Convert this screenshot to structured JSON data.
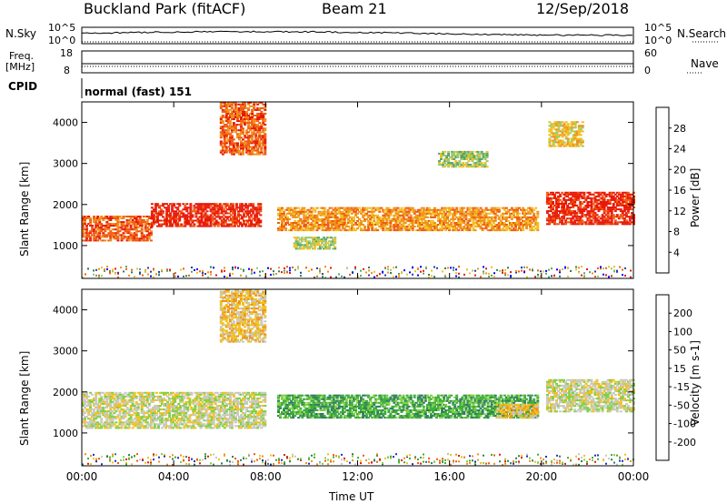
{
  "header": {
    "station": "Buckland Park (fitACF)",
    "beam": "Beam 21",
    "date": "12/Sep/2018"
  },
  "status_panels": {
    "nsky_label": "N.Sky",
    "nsky_ticks": [
      "10^5",
      "10^0"
    ],
    "nsearch_label": "N.Search",
    "nsearch_ticks": [
      "10^5",
      "10^0"
    ],
    "freq_label": "Freq.",
    "freq_unit": "[MHz]",
    "freq_ticks": [
      "18",
      "8"
    ],
    "nave_label": "Nave",
    "nave_ticks": [
      "60",
      "0"
    ],
    "cpid_label": "CPID",
    "cpid_value": "normal (fast) 151"
  },
  "chart_data": [
    {
      "type": "heatmap",
      "name": "power",
      "ylabel": "Slant Range [km]",
      "yticks": [
        "4000",
        "3000",
        "2000",
        "1000"
      ],
      "ylim": [
        200,
        4500
      ],
      "xlim": [
        0,
        24
      ],
      "colorbar_label": "Power [dB]",
      "colorbar_ticks": [
        "28",
        "24",
        "20",
        "16",
        "12",
        "8",
        "4"
      ],
      "colors": [
        "#0000ff",
        "#2040a0",
        "#2e7d5a",
        "#56a46a",
        "#9cc86a",
        "#f0c020",
        "#f09018",
        "#f05a10",
        "#e81808"
      ],
      "echo_regions": [
        {
          "t0": 0.0,
          "t1": 3.0,
          "r0": 1100,
          "r1": 1700,
          "level": 7
        },
        {
          "t0": 3.0,
          "t1": 7.8,
          "r0": 1450,
          "r1": 2000,
          "level": 8
        },
        {
          "t0": 6.0,
          "t1": 8.0,
          "r0": 3200,
          "r1": 4500,
          "level": 7
        },
        {
          "t0": 8.5,
          "t1": 19.8,
          "r0": 1350,
          "r1": 1900,
          "level": 6
        },
        {
          "t0": 9.2,
          "t1": 11.0,
          "r0": 900,
          "r1": 1200,
          "level": 4
        },
        {
          "t0": 15.5,
          "t1": 17.6,
          "r0": 2900,
          "r1": 3300,
          "level": 4
        },
        {
          "t0": 20.2,
          "t1": 24.0,
          "r0": 1500,
          "r1": 2300,
          "level": 8
        },
        {
          "t0": 20.3,
          "t1": 21.8,
          "r0": 3400,
          "r1": 4000,
          "level": 5
        }
      ]
    },
    {
      "type": "heatmap",
      "name": "velocity",
      "xlabel": "Time UT",
      "ylabel": "Slant Range [km]",
      "xticks": [
        "00:00",
        "04:00",
        "08:00",
        "12:00",
        "16:00",
        "20:00",
        "00:00"
      ],
      "yticks": [
        "4000",
        "3000",
        "2000",
        "1000"
      ],
      "ylim": [
        200,
        4500
      ],
      "xlim": [
        0,
        24
      ],
      "colorbar_label": "Velocity [m s-1]",
      "colorbar_ticks": [
        "200",
        "100",
        "50",
        "15",
        "-15",
        "-50",
        "-100",
        "-200"
      ],
      "colors": [
        "#2030c0",
        "#2e7d5a",
        "#3caa3c",
        "#7cd040",
        "#c8c8c0",
        "#f0c020",
        "#f09018",
        "#f05a10",
        "#e81808"
      ],
      "echo_regions": [
        {
          "t0": 0.0,
          "t1": 8.0,
          "r0": 1100,
          "r1": 2000,
          "level": 4
        },
        {
          "t0": 6.0,
          "t1": 8.0,
          "r0": 3200,
          "r1": 4500,
          "level": 5
        },
        {
          "t0": 8.5,
          "t1": 19.8,
          "r0": 1350,
          "r1": 1900,
          "level": 2
        },
        {
          "t0": 18.0,
          "t1": 19.8,
          "r0": 1350,
          "r1": 1700,
          "level": 5
        },
        {
          "t0": 20.2,
          "t1": 24.0,
          "r0": 1500,
          "r1": 2300,
          "level": 4
        }
      ]
    }
  ]
}
